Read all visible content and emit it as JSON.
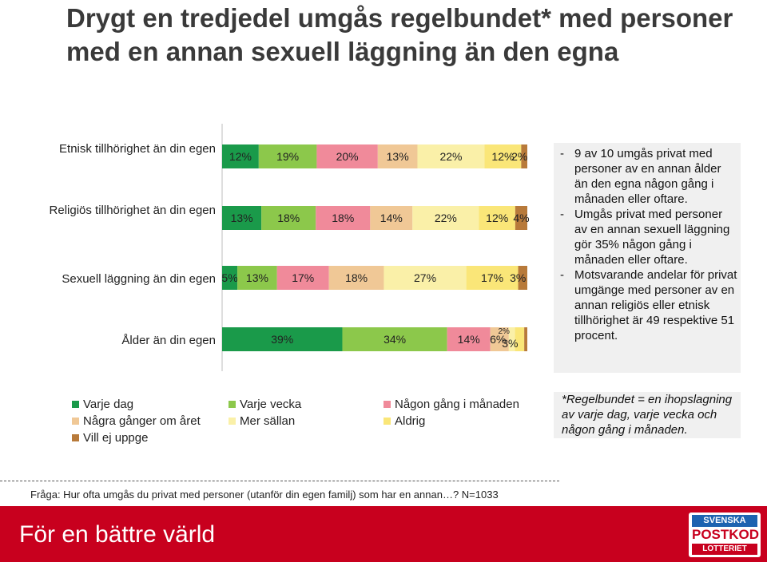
{
  "title": "Drygt en tredjedel umgås regelbundet* med personer med en annan sexuell läggning än den egna",
  "chart_data": {
    "type": "bar",
    "orientation": "horizontal",
    "stacked": "100%",
    "categories": [
      "Etnisk tillhörighet än din egen",
      "Religiös tillhörighet än din egen",
      "Sexuell läggning än din egen",
      "Ålder än din egen"
    ],
    "series": [
      {
        "name": "Varje dag",
        "color": "#1a9a4a",
        "values": [
          12,
          13,
          5,
          39
        ]
      },
      {
        "name": "Varje vecka",
        "color": "#8cc84b",
        "values": [
          19,
          18,
          13,
          34
        ]
      },
      {
        "name": "Någon gång i månaden",
        "color": "#f08a9a",
        "values": [
          20,
          18,
          17,
          14
        ]
      },
      {
        "name": "Några gånger om året",
        "color": "#f0c896",
        "values": [
          13,
          14,
          18,
          6
        ]
      },
      {
        "name": "Mer sällan",
        "color": "#faf0a8",
        "values": [
          22,
          22,
          27,
          2
        ]
      },
      {
        "name": "Aldrig",
        "color": "#fae678",
        "values": [
          12,
          12,
          17,
          3
        ]
      },
      {
        "name": "Vill ej uppge",
        "color": "#b87a3a",
        "values": [
          2,
          4,
          3,
          1
        ]
      }
    ],
    "data_labels": [
      [
        "12%",
        "19%",
        "20%",
        "13%",
        "22%",
        "12%",
        "2%"
      ],
      [
        "13%",
        "18%",
        "18%",
        "14%",
        "22%",
        "12%",
        "4%"
      ],
      [
        "5%",
        "13%",
        "17%",
        "18%",
        "27%",
        "17%",
        "3%"
      ],
      [
        "39%",
        "34%",
        "14%",
        "6%",
        "2%",
        "3%",
        ""
      ]
    ],
    "legend_position": "bottom",
    "grid": false
  },
  "category_labels": [
    "Etnisk tillhörighet än din egen",
    "Religiös tillhörighet än din egen",
    "Sexuell läggning än din egen",
    "Ålder än din egen"
  ],
  "legend": [
    "Varje dag",
    "Varje vecka",
    "Någon gång i månaden",
    "Några gånger om året",
    "Mer sällan",
    "Aldrig",
    "Vill ej uppge"
  ],
  "notes": [
    {
      "dash": "-",
      "text": "9 av 10 umgås privat med personer av en annan ålder än den egna någon gång i månaden eller oftare."
    },
    {
      "dash": "-",
      "text": "Umgås privat med personer av en annan sexuell läggning gör 35% någon gång i månaden eller oftare."
    },
    {
      "dash": "-",
      "text": "Motsvarande andelar för privat umgänge med personer av en annan religiös eller etnisk tillhörighet är 49 respektive 51 procent."
    }
  ],
  "footnote": "*Regelbundet = en ihopslagning av varje dag, varje vecka och någon gång i månaden.",
  "question": "Fråga: Hur ofta umgås du privat med personer (utanför din egen familj) som har en annan…? N=1033",
  "footer": {
    "slogan": "För en bättre värld",
    "logo": {
      "line1": "SVENSKA",
      "line2": "POSTKOD",
      "line3": "LOTTERIET"
    }
  }
}
